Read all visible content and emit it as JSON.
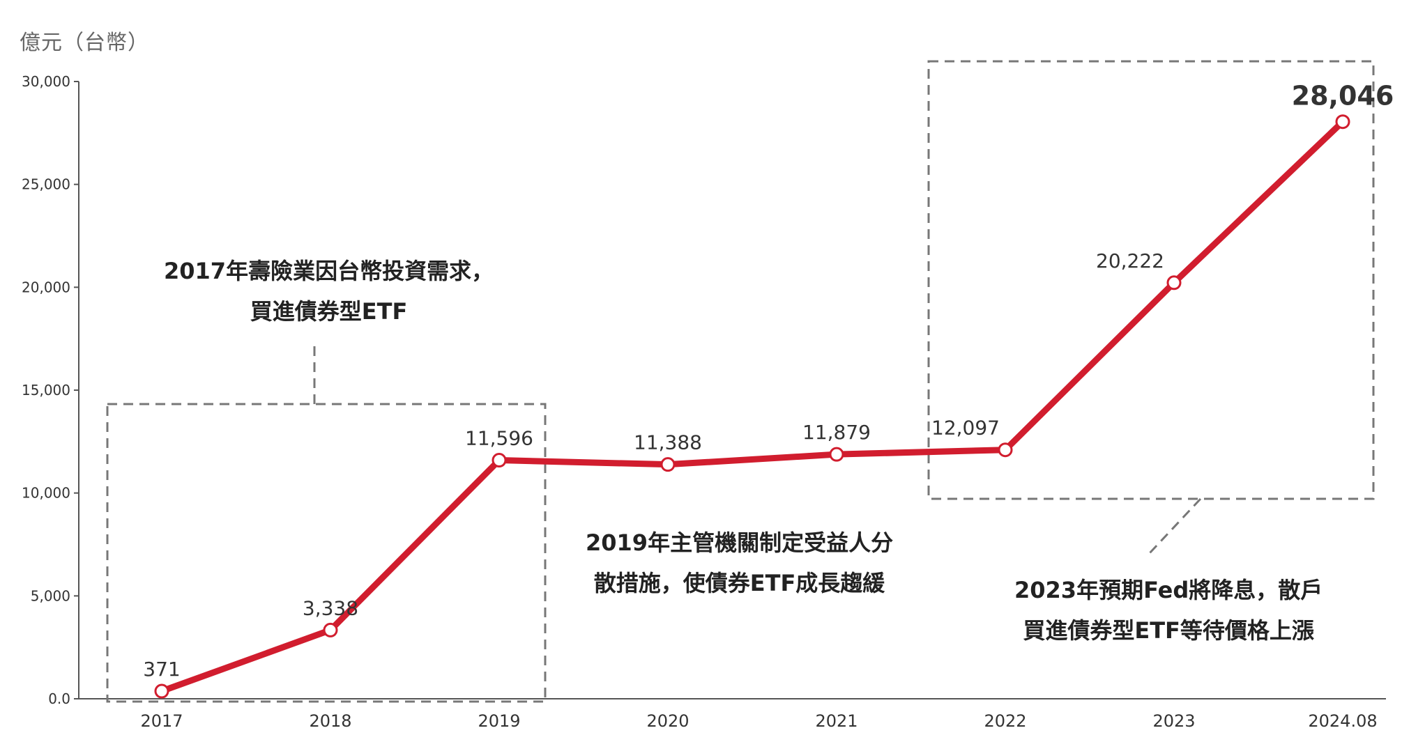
{
  "unit_label": "億元（台幣）",
  "colors": {
    "line": "#d11d2e",
    "axis": "#555555",
    "box": "#777777",
    "text": "#333333"
  },
  "chart_data": {
    "type": "line",
    "title": "",
    "ylabel": "億元（台幣）",
    "xlabel": "",
    "categories": [
      "2017",
      "2018",
      "2019",
      "2020",
      "2021",
      "2022",
      "2023",
      "2024.08"
    ],
    "series": [
      {
        "values": [
          371,
          3338,
          11596,
          11388,
          11879,
          12097,
          20222,
          28046
        ]
      }
    ],
    "data_labels": [
      "371",
      "3,338",
      "11,596",
      "11,388",
      "11,879",
      "12,097",
      "20,222",
      "28,046"
    ],
    "ylim": [
      0,
      30000
    ],
    "yticks": [
      0,
      5000,
      10000,
      15000,
      20000,
      25000,
      30000
    ],
    "ytick_labels": [
      "0.0",
      "5,000",
      "10,000",
      "15,000",
      "20,000",
      "25,000",
      "30,000"
    ],
    "grid": false,
    "legend": "none"
  },
  "annotations": {
    "a2017": {
      "line1": "2017年壽險業因台幣投資需求，",
      "line2": "買進債券型ETF"
    },
    "a2019": {
      "line1": "2019年主管機關制定受益人分",
      "line2": "散措施，使債券ETF成長趨緩"
    },
    "a2023": {
      "line1": "2023年預期Fed將降息，散戶",
      "line2": "買進債券型ETF等待價格上漲"
    }
  }
}
